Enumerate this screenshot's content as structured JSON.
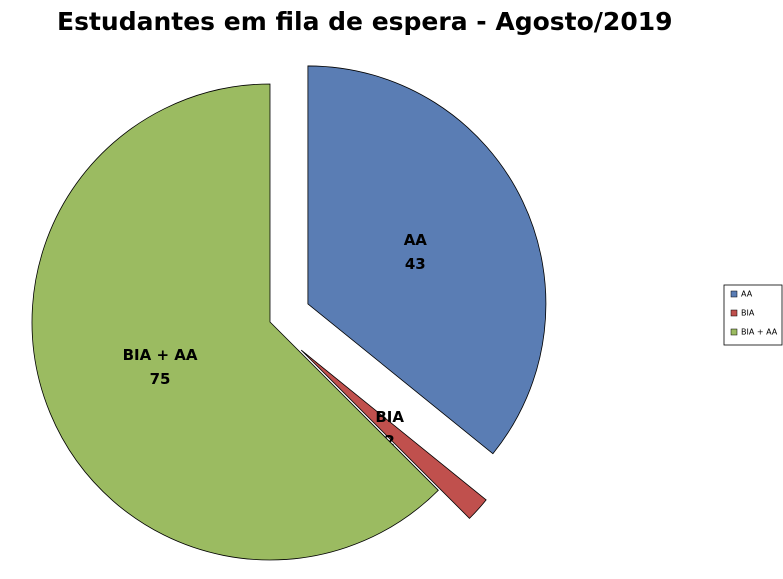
{
  "chart_data": {
    "type": "pie",
    "title": "Estudantes em fila de espera - Agosto/2019",
    "categories": [
      "AA",
      "BIA",
      "BIA + AA"
    ],
    "values": [
      43,
      2,
      75
    ],
    "colors": [
      "#5a7db4",
      "#c0504d",
      "#9bbb61"
    ],
    "legend": "right"
  }
}
